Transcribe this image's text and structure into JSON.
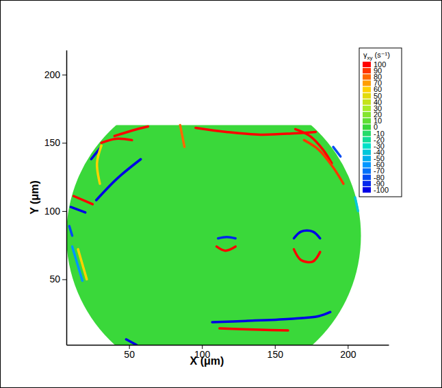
{
  "chart_data": {
    "type": "contour",
    "x_label": "X (μm)",
    "y_label": "Y (μm)",
    "xlim": [
      7,
      228
    ],
    "ylim": [
      2,
      218
    ],
    "xticks": [
      50,
      100,
      150,
      200
    ],
    "yticks": [
      50,
      100,
      150,
      200
    ],
    "domain": {
      "center": [
        108,
        82
      ],
      "radii": [
        101,
        108
      ],
      "ymax": 163,
      "value": 0
    },
    "streaks": [
      {
        "value": 100,
        "x": [
          95.6,
          116.7,
          140.2,
          163.6,
          178
        ],
        "y": [
          161,
          158,
          156,
          157,
          158
        ]
      },
      {
        "value": 80,
        "x": [
          85,
          88
        ],
        "y": [
          163,
          147
        ]
      },
      {
        "value": 100,
        "x": [
          40,
          52,
          63
        ],
        "y": [
          155,
          159,
          162
        ]
      },
      {
        "value": -100,
        "x": [
          24,
          30
        ],
        "y": [
          138,
          146
        ]
      },
      {
        "value": 100,
        "x": [
          31,
          41,
          52
        ],
        "y": [
          150,
          153,
          152
        ]
      },
      {
        "value": 60,
        "x": [
          31,
          28,
          30
        ],
        "y": [
          148,
          135,
          120
        ]
      },
      {
        "value": -100,
        "x": [
          27.5,
          42,
          58
        ],
        "y": [
          108,
          124,
          138
        ]
      },
      {
        "value": 100,
        "x": [
          12,
          25
        ],
        "y": [
          111,
          105
        ]
      },
      {
        "value": -100,
        "x": [
          10,
          20
        ],
        "y": [
          103,
          99
        ]
      },
      {
        "value": -80,
        "x": [
          9,
          11
        ],
        "y": [
          89,
          82
        ]
      },
      {
        "value": -60,
        "x": [
          11,
          18
        ],
        "y": [
          74,
          49
        ]
      },
      {
        "value": 60,
        "x": [
          15,
          21
        ],
        "y": [
          72,
          50
        ]
      },
      {
        "value": -90,
        "x": [
          111,
          117,
          123
        ],
        "y": [
          80,
          81,
          80
        ]
      },
      {
        "value": 100,
        "x": [
          110,
          116,
          123
        ],
        "y": [
          74,
          71,
          74
        ]
      },
      {
        "value": -100,
        "x": [
          163,
          168,
          176,
          181
        ],
        "y": [
          80,
          85,
          85,
          80
        ]
      },
      {
        "value": 100,
        "x": [
          163,
          168,
          176,
          181
        ],
        "y": [
          72,
          64,
          63,
          70
        ]
      },
      {
        "value": -100,
        "x": [
          107,
          130,
          160,
          180,
          188
        ],
        "y": [
          18.6,
          19.5,
          21,
          23,
          26
        ]
      },
      {
        "value": 100,
        "x": [
          112,
          140,
          159
        ],
        "y": [
          14,
          13,
          12.5
        ]
      },
      {
        "value": -100,
        "x": [
          48,
          55
        ],
        "y": [
          6,
          2
        ]
      },
      {
        "value": 100,
        "x": [
          164,
          174,
          183,
          189
        ],
        "y": [
          160,
          155,
          145,
          135
        ]
      },
      {
        "value": 90,
        "x": [
          170,
          180,
          190,
          197
        ],
        "y": [
          152,
          145,
          132,
          120
        ]
      },
      {
        "value": -80,
        "x": [
          190,
          195
        ],
        "y": [
          147,
          140
        ]
      },
      {
        "value": -40,
        "x": [
          205,
          207
        ],
        "y": [
          110,
          100
        ]
      }
    ],
    "colorbar": {
      "title": "γ",
      "title_subscript": "xy",
      "title_unit": "(s⁻¹)",
      "range": [
        -100,
        100
      ],
      "ticks": [
        100,
        90,
        80,
        70,
        60,
        50,
        40,
        30,
        20,
        10,
        0,
        -10,
        -20,
        -30,
        -40,
        -50,
        -60,
        -70,
        -80,
        -90,
        -100
      ]
    }
  }
}
